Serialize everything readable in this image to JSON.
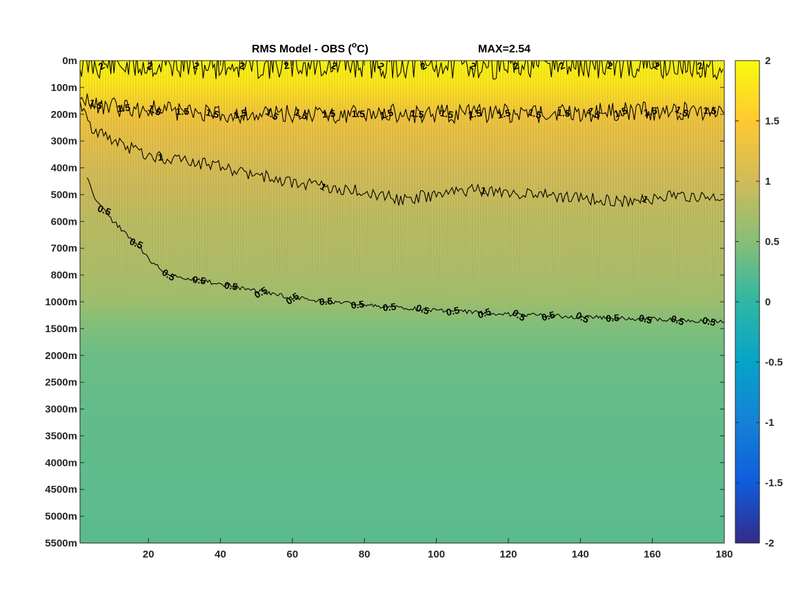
{
  "chart_data": {
    "type": "heatmap",
    "title": {
      "main": "RMS Model - OBS (",
      "degree": "o",
      "unit_suffix": "C)",
      "max_label": "MAX=2.54"
    },
    "xlabel": "",
    "ylabel": "",
    "xlim": [
      1,
      180
    ],
    "x_ticks": [
      20,
      40,
      60,
      80,
      100,
      120,
      140,
      160,
      180
    ],
    "y_ticks": [
      "0m",
      "100m",
      "200m",
      "300m",
      "400m",
      "500m",
      "600m",
      "700m",
      "800m",
      "1000m",
      "1500m",
      "2000m",
      "2500m",
      "3000m",
      "3500m",
      "4000m",
      "4500m",
      "5000m",
      "5500m"
    ],
    "colorbar": {
      "limits": [
        -2,
        2
      ],
      "ticks": [
        "2",
        "1.5",
        "1",
        "0.5",
        "0",
        "-0.5",
        "-1",
        "-1.5",
        "-2"
      ],
      "colormap": "parula",
      "colors": [
        "#352a87",
        "#0f5cdd",
        "#1481d6",
        "#06a4ca",
        "#2eb7a4",
        "#87bf77",
        "#d1bb59",
        "#fec832",
        "#f9fb0e"
      ]
    },
    "field_profile": [
      {
        "depth": "0m",
        "value": 1.95
      },
      {
        "depth": "100m",
        "value": 1.75
      },
      {
        "depth": "200m",
        "value": 1.35
      },
      {
        "depth": "300m",
        "value": 1.2
      },
      {
        "depth": "400m",
        "value": 1.05
      },
      {
        "depth": "500m",
        "value": 0.95
      },
      {
        "depth": "600m",
        "value": 0.85
      },
      {
        "depth": "800m",
        "value": 0.75
      },
      {
        "depth": "1000m",
        "value": 0.65
      },
      {
        "depth": "1500m",
        "value": 0.45
      },
      {
        "depth": "2000m",
        "value": 0.35
      },
      {
        "depth": "3000m",
        "value": 0.3
      },
      {
        "depth": "5500m",
        "value": 0.25
      }
    ],
    "contours": [
      {
        "level": "2",
        "label_count": 14
      },
      {
        "level": "1.5",
        "label_count": 22
      },
      {
        "level": "1",
        "label_count": 4
      },
      {
        "level": "0.5",
        "label_count": 20
      }
    ]
  }
}
